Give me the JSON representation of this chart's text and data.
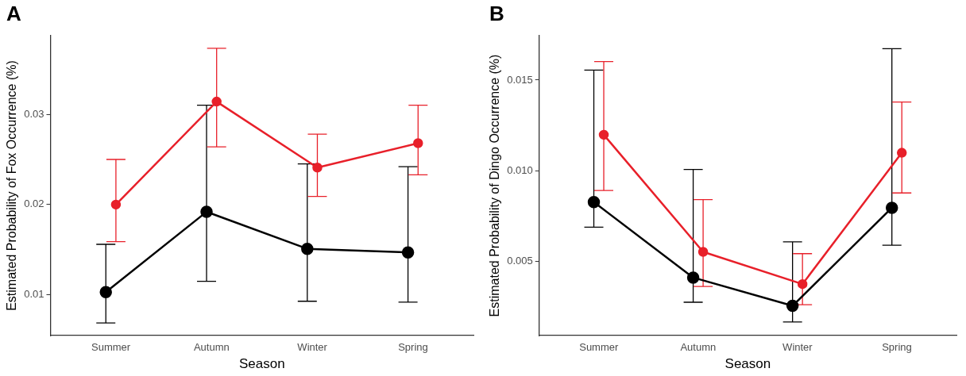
{
  "chart_data": [
    {
      "type": "line",
      "title": "A",
      "xlabel": "Season",
      "ylabel": "Estimated Probability of Fox Occurrence (%)",
      "categories": [
        "Summer",
        "Autumn",
        "Winter",
        "Spring"
      ],
      "series": [
        {
          "color": "#000000",
          "values": [
            0.0103,
            0.0192,
            0.0151,
            0.0147
          ],
          "errors": [
            [
              0.0069,
              0.0156
            ],
            [
              0.0115,
              0.031
            ],
            [
              0.0093,
              0.0245
            ],
            [
              0.0092,
              0.0242
            ]
          ]
        },
        {
          "color": "#e8202a",
          "values": [
            0.02,
            0.0314,
            0.0241,
            0.0268
          ],
          "errors": [
            [
              0.0159,
              0.025
            ],
            [
              0.0264,
              0.0373
            ],
            [
              0.0209,
              0.0278
            ],
            [
              0.0233,
              0.031
            ]
          ]
        }
      ],
      "ylim": [
        0.0055,
        0.0387
      ],
      "yticks": [
        {
          "value": 0.01,
          "label": "0.01"
        },
        {
          "value": 0.02,
          "label": "0.02"
        },
        {
          "value": 0.03,
          "label": "0.03"
        }
      ],
      "grid": false,
      "legend": false,
      "marker": "circle",
      "line_style": "solid"
    },
    {
      "type": "line",
      "title": "B",
      "xlabel": "Season",
      "ylabel": "Estimated Probability of Dingo Occurrence (%)",
      "categories": [
        "Summer",
        "Autumn",
        "Winter",
        "Spring"
      ],
      "series": [
        {
          "color": "#000000",
          "values": [
            0.00827,
            0.0041,
            0.00254,
            0.00795
          ],
          "errors": [
            [
              0.00688,
              0.01555
            ],
            [
              0.00274,
              0.01007
            ],
            [
              0.00165,
              0.00607
            ],
            [
              0.00589,
              0.01673
            ]
          ]
        },
        {
          "color": "#e8202a",
          "values": [
            0.01198,
            0.00552,
            0.00374,
            0.01099
          ],
          "errors": [
            [
              0.00891,
              0.01602
            ],
            [
              0.00361,
              0.0084
            ],
            [
              0.0026,
              0.00542
            ],
            [
              0.00877,
              0.01379
            ]
          ]
        }
      ],
      "ylim": [
        0.0009,
        0.01745
      ],
      "yticks": [
        {
          "value": 0.005,
          "label": "0.005"
        },
        {
          "value": 0.01,
          "label": "0.010"
        },
        {
          "value": 0.015,
          "label": "0.015"
        }
      ],
      "grid": false,
      "legend": false,
      "marker": "circle",
      "line_style": "solid"
    }
  ]
}
